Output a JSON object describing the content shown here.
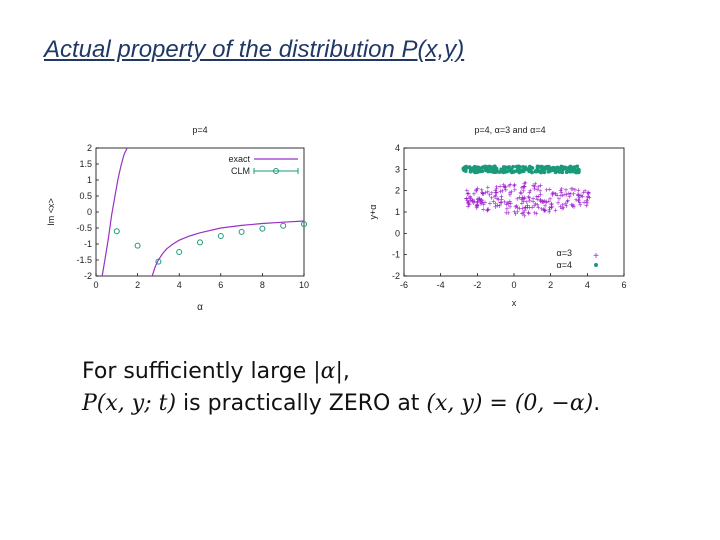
{
  "slide": {
    "title": "Actual property of the distribution P(x,y)"
  },
  "formula": {
    "line1_text": "For sufficiently large ",
    "line1_math": "|α|",
    "line1_tail": ",",
    "line2_math1": "P(x, y; t)",
    "line2_text": " is practically ZERO at ",
    "line2_math2": "(x, y) = (0, −α)",
    "line2_tail": "."
  },
  "chart_data": [
    {
      "type": "line",
      "title": "p=4",
      "xlabel": "α",
      "ylabel": "Im <x>",
      "xlim": [
        0,
        10
      ],
      "ylim": [
        -2,
        2
      ],
      "xticks": [
        "0",
        "2",
        "4",
        "6",
        "8",
        "10"
      ],
      "yticks": [
        "2",
        "1.5",
        "1",
        "0.5",
        "0",
        "-0.5",
        "-1",
        "-1.5",
        "-2"
      ],
      "legend_position": "top-right",
      "colors": {
        "exact": "#9b30c8",
        "clm": "#1a9a7a"
      },
      "series": [
        {
          "name": "exact",
          "x": [
            0.3,
            0.45,
            0.6,
            0.75,
            0.9,
            1.05,
            1.2,
            1.35,
            1.5,
            1.55
          ],
          "values": [
            -2.0,
            -1.4,
            -0.8,
            -0.1,
            0.45,
            1.0,
            1.45,
            1.8,
            2.0,
            2.0
          ]
        },
        {
          "name": "exact",
          "x": [
            2.7,
            2.85,
            3.0,
            3.2,
            3.4,
            3.7,
            4.0,
            4.5,
            5.0,
            6.0,
            7.0,
            8.0,
            9.0,
            10.0
          ],
          "values": [
            -2.0,
            -1.7,
            -1.5,
            -1.3,
            -1.15,
            -1.0,
            -0.88,
            -0.75,
            -0.65,
            -0.5,
            -0.42,
            -0.36,
            -0.32,
            -0.28
          ]
        },
        {
          "name": "CLM",
          "x": [
            1,
            2,
            3,
            4,
            5,
            6,
            7,
            8,
            9,
            10
          ],
          "values": [
            -0.6,
            -1.05,
            -1.55,
            -1.25,
            -0.95,
            -0.75,
            -0.62,
            -0.52,
            -0.43,
            -0.38
          ]
        }
      ]
    },
    {
      "type": "scatter",
      "title": "p=4, α=3 and α=4",
      "xlabel": "x",
      "ylabel": "y+α",
      "xlim": [
        -6,
        6
      ],
      "ylim": [
        -2,
        4
      ],
      "xticks": [
        "-6",
        "-4",
        "-2",
        "0",
        "2",
        "4",
        "6"
      ],
      "yticks": [
        "4",
        "3",
        "2",
        "1",
        "0",
        "-1",
        "-2"
      ],
      "legend_position": "bottom-right",
      "series": [
        {
          "name": "α=3",
          "marker": "plus",
          "color": "#a020d0",
          "x_range": [
            -2.6,
            4.3
          ],
          "y_center": 1.7,
          "y_spread": 0.5
        },
        {
          "name": "α=4",
          "marker": "dot",
          "color": "#1a9a7a",
          "x_range": [
            -2.8,
            3.6
          ],
          "y_center": 3.0,
          "y_spread": 0.15
        }
      ]
    }
  ]
}
